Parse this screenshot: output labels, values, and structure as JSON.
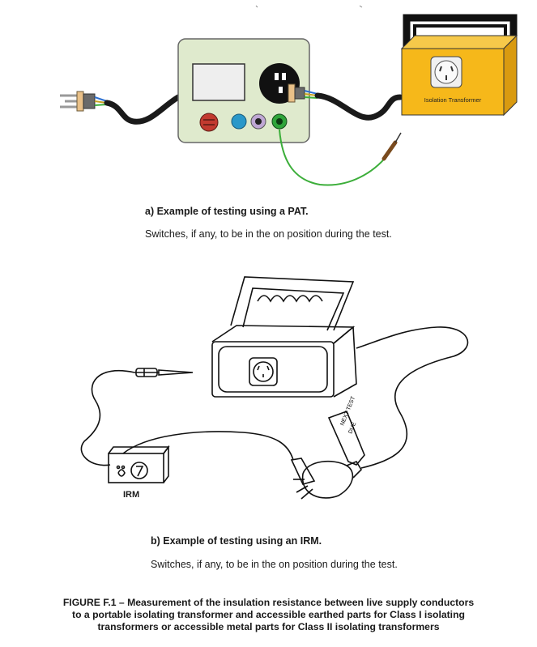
{
  "figure_a": {
    "transformer_label": "Isolation Transformer",
    "caption": "a) Example of testing using a PAT.",
    "note": "Switches, if any, to be in the on position during the test."
  },
  "figure_b": {
    "irm_label": "IRM",
    "tag_line1": "NEXT TEST",
    "tag_line2": "DUE",
    "caption": "b) Example of testing using an IRM.",
    "note": "Switches, if any, to be in the on position during the test."
  },
  "figure_title": {
    "line1": "FIGURE F.1 – Measurement of the insulation resistance between live supply conductors",
    "line2": "to a portable isolating transformer and accessible earthed parts for Class I isolating",
    "line3": "transformers or accessible metal parts for Class II isolating transformers"
  },
  "colors": {
    "pat_body": "#dfeacd",
    "transformer_body": "#f6b81a",
    "earth_lead": "#3cae3a",
    "red_knob": "#c23a2f",
    "blue_knob": "#2a98c9"
  }
}
